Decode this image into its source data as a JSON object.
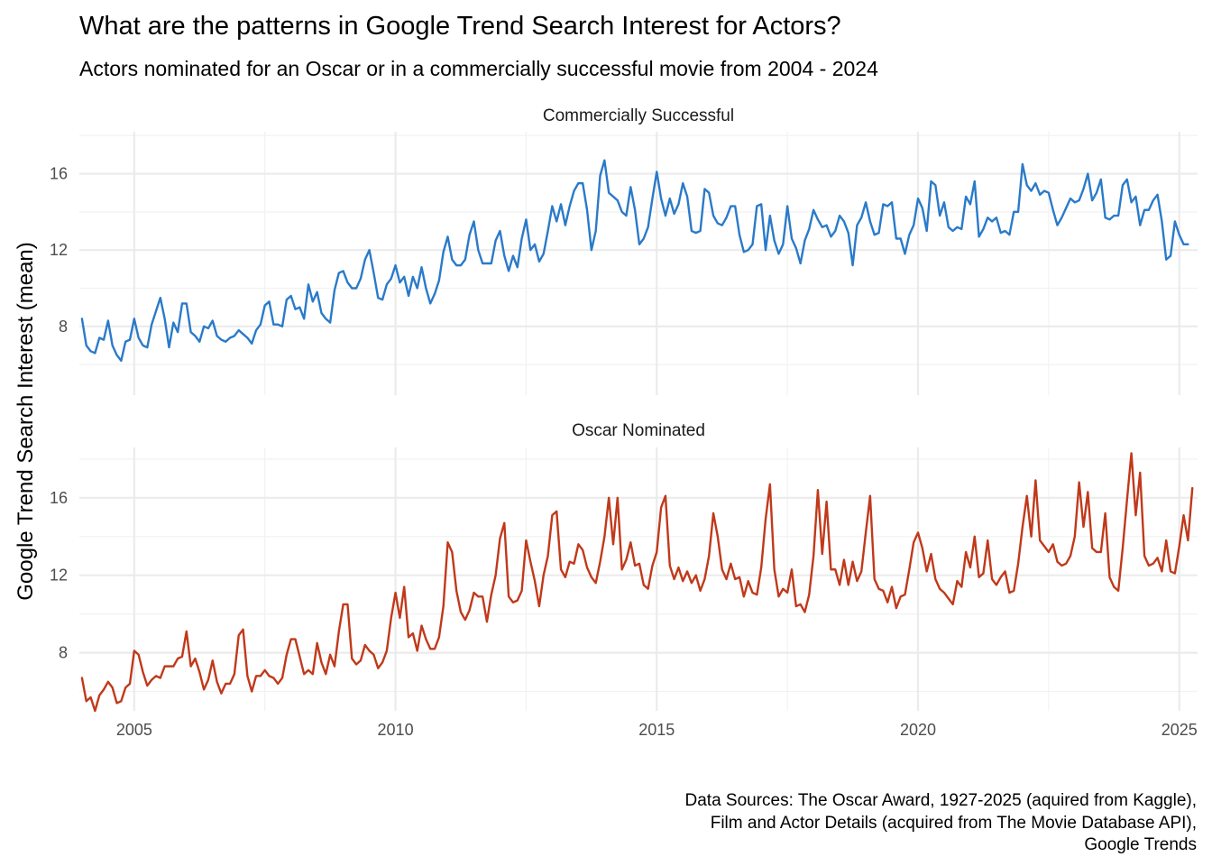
{
  "chart_data": {
    "type": "line",
    "title": "What are the patterns in Google Trend Search Interest for Actors?",
    "subtitle": "Actors nominated for an Oscar or in a commercially successful movie from 2004 - 2024",
    "ylabel": "Google Trend Search Interest (mean)",
    "xlabel": "",
    "caption": [
      "Data Sources: The Oscar Award, 1927-2025 (aquired from Kaggle),",
      "Film and Actor Details (acquired from The Movie Database API),",
      "Google Trends"
    ],
    "xlim": [
      2003.95,
      2025.35
    ],
    "x_ticks": [
      2005,
      2010,
      2015,
      2020,
      2025
    ],
    "y_ticks": [
      8,
      12,
      16
    ],
    "grid": true,
    "legend": "none",
    "x_start_year": 2004,
    "x_step_months": 1,
    "panels": [
      {
        "strip_label": "Commercially Successful",
        "color": "#2a7ac9",
        "ylim": [
          4.4,
          18.2
        ],
        "series": [
          {
            "values": [
              8.4,
              7.0,
              6.7,
              6.6,
              7.4,
              7.3,
              8.3,
              7.0,
              6.5,
              6.2,
              7.2,
              7.3,
              8.4,
              7.4,
              7.0,
              6.9,
              8.1,
              8.8,
              9.5,
              8.4,
              6.9,
              8.2,
              7.7,
              9.2,
              9.2,
              7.7,
              7.5,
              7.2,
              8.0,
              7.9,
              8.3,
              7.5,
              7.3,
              7.2,
              7.4,
              7.5,
              7.8,
              7.6,
              7.4,
              7.1,
              7.8,
              8.1,
              9.1,
              9.3,
              8.1,
              8.1,
              8.0,
              9.4,
              9.6,
              8.9,
              9.0,
              8.4,
              10.2,
              9.3,
              9.8,
              8.7,
              8.4,
              8.2,
              9.9,
              10.8,
              10.9,
              10.3,
              10.0,
              10.0,
              10.5,
              11.5,
              12.0,
              10.8,
              9.5,
              9.4,
              10.2,
              10.5,
              11.2,
              10.3,
              10.6,
              9.6,
              10.6,
              10.0,
              11.1,
              10.0,
              9.2,
              9.7,
              10.4,
              11.9,
              12.7,
              11.5,
              11.2,
              11.2,
              11.5,
              12.8,
              13.5,
              12.0,
              11.3,
              11.3,
              11.3,
              12.5,
              13.0,
              11.7,
              10.9,
              11.7,
              11.1,
              12.6,
              13.6,
              12.0,
              12.3,
              11.4,
              11.8,
              13.0,
              14.3,
              13.5,
              14.4,
              13.3,
              14.3,
              15.1,
              15.5,
              15.5,
              14.1,
              12.0,
              13.0,
              15.9,
              16.7,
              15.0,
              14.8,
              14.6,
              14.0,
              13.8,
              15.3,
              14.1,
              12.3,
              12.6,
              13.2,
              14.7,
              16.1,
              14.7,
              13.8,
              14.7,
              13.9,
              14.4,
              15.5,
              14.8,
              13.0,
              12.9,
              13.0,
              15.2,
              15.0,
              13.8,
              13.4,
              13.3,
              13.7,
              14.3,
              14.3,
              12.8,
              11.9,
              12.0,
              12.3,
              14.3,
              14.4,
              12.0,
              13.8,
              12.5,
              11.8,
              12.3,
              14.3,
              12.6,
              12.1,
              11.3,
              12.5,
              13.1,
              14.1,
              13.6,
              13.2,
              13.3,
              12.7,
              13.0,
              13.8,
              13.5,
              12.9,
              11.2,
              13.3,
              13.7,
              14.5,
              13.5,
              12.8,
              12.9,
              14.4,
              14.3,
              14.5,
              12.6,
              12.6,
              11.8,
              12.8,
              13.3,
              14.7,
              14.2,
              13.0,
              15.6,
              15.4,
              13.8,
              14.5,
              13.2,
              13.0,
              13.2,
              13.1,
              14.8,
              14.4,
              15.6,
              12.7,
              13.1,
              13.7,
              13.5,
              13.7,
              12.9,
              13.0,
              12.8,
              14.0,
              14.0,
              16.5,
              15.4,
              15.1,
              15.5,
              14.9,
              15.1,
              15.0,
              14.1,
              13.3,
              13.7,
              14.2,
              14.7,
              14.5,
              14.6,
              15.2,
              16.0,
              14.6,
              15.0,
              15.7,
              13.7,
              13.6,
              13.8,
              13.8,
              15.4,
              15.7,
              14.5,
              14.8,
              13.3,
              14.1,
              14.1,
              14.6,
              14.9,
              13.5,
              11.5,
              11.7,
              13.5,
              12.8,
              12.3,
              12.3
            ]
          }
        ]
      },
      {
        "strip_label": "Oscar Nominated",
        "color": "#c0391a",
        "ylim": [
          5.0,
          18.6
        ],
        "series": [
          {
            "values": [
              6.7,
              5.5,
              5.7,
              5.0,
              5.8,
              6.1,
              6.5,
              6.2,
              5.4,
              5.5,
              6.2,
              6.4,
              8.1,
              7.9,
              7.0,
              6.3,
              6.6,
              6.8,
              6.7,
              7.3,
              7.3,
              7.3,
              7.7,
              7.8,
              9.1,
              7.3,
              7.7,
              7.0,
              6.1,
              6.6,
              7.6,
              6.5,
              5.9,
              6.4,
              6.4,
              6.9,
              8.9,
              9.2,
              6.8,
              6.0,
              6.8,
              6.8,
              7.1,
              6.8,
              6.7,
              6.4,
              6.7,
              7.9,
              8.7,
              8.7,
              7.8,
              6.9,
              7.1,
              6.9,
              8.5,
              7.5,
              6.9,
              7.9,
              7.3,
              9.1,
              10.5,
              10.5,
              7.7,
              7.4,
              7.6,
              8.4,
              8.1,
              7.9,
              7.2,
              7.5,
              8.1,
              9.8,
              11.1,
              9.8,
              11.4,
              8.8,
              9.0,
              8.1,
              9.4,
              8.7,
              8.2,
              8.2,
              8.8,
              10.4,
              13.7,
              13.2,
              11.2,
              10.1,
              9.7,
              10.2,
              11.1,
              10.9,
              10.9,
              9.6,
              11.0,
              12.0,
              13.9,
              14.7,
              10.9,
              10.6,
              10.7,
              11.2,
              13.8,
              12.7,
              11.7,
              10.4,
              12.0,
              13.0,
              15.1,
              15.3,
              12.3,
              11.9,
              12.7,
              12.6,
              13.6,
              13.3,
              12.4,
              11.9,
              11.6,
              12.7,
              14.0,
              16.0,
              13.6,
              16.0,
              12.3,
              12.8,
              13.7,
              12.5,
              12.6,
              11.5,
              11.3,
              12.5,
              13.2,
              15.5,
              16.1,
              12.5,
              11.8,
              12.4,
              11.7,
              12.2,
              11.6,
              12.0,
              11.2,
              11.8,
              13.0,
              15.2,
              14.0,
              12.3,
              11.8,
              12.6,
              11.8,
              11.9,
              10.9,
              11.7,
              11.1,
              11.0,
              12.4,
              14.9,
              16.7,
              12.3,
              10.9,
              11.3,
              11.1,
              12.3,
              10.4,
              10.5,
              10.1,
              11.0,
              13.0,
              16.4,
              13.1,
              15.8,
              12.3,
              12.3,
              11.5,
              12.8,
              11.5,
              12.7,
              11.7,
              12.2,
              14.2,
              16.1,
              11.8,
              11.3,
              11.2,
              10.6,
              11.4,
              10.3,
              10.9,
              11.0,
              12.3,
              13.7,
              14.2,
              13.4,
              12.2,
              13.1,
              11.8,
              11.3,
              11.1,
              10.8,
              10.5,
              11.7,
              11.4,
              13.2,
              12.4,
              14.0,
              11.9,
              12.1,
              13.8,
              11.8,
              11.5,
              11.9,
              12.2,
              11.1,
              11.2,
              12.6,
              14.5,
              16.1,
              14.0,
              16.9,
              13.8,
              13.5,
              13.2,
              13.6,
              12.7,
              12.5,
              12.6,
              13.0,
              14.0,
              16.8,
              14.5,
              16.3,
              13.4,
              13.2,
              13.2,
              15.2,
              11.9,
              11.4,
              11.2,
              13.4,
              15.9,
              18.3,
              15.1,
              17.3,
              13.0,
              12.5,
              12.6,
              12.9,
              12.2,
              13.8,
              12.2,
              12.1,
              13.5,
              15.1,
              13.8,
              16.5
            ]
          }
        ]
      }
    ]
  }
}
